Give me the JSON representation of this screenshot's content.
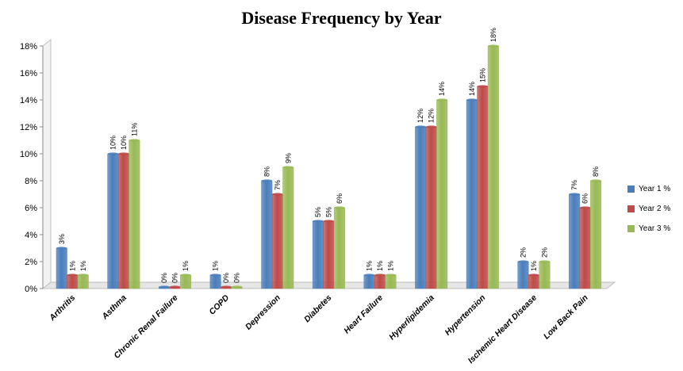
{
  "chart_data": {
    "type": "bar",
    "title": "Disease Frequency by Year",
    "xlabel": "",
    "ylabel": "",
    "ylim": [
      0,
      18
    ],
    "yticks": [
      "0%",
      "2%",
      "4%",
      "6%",
      "8%",
      "10%",
      "12%",
      "14%",
      "16%",
      "18%"
    ],
    "categories": [
      "Arthritis",
      "Asthma",
      "Chronic Renal Failure",
      "COPD",
      "Depression",
      "Diabetes",
      "Heart Failure",
      "Hyperlipidemia",
      "Hypertension",
      "Ischemic Heart Disease",
      "Low Back Pain"
    ],
    "series": [
      {
        "name": "Year 1 %",
        "color": "#4a7ebb",
        "values": [
          3,
          10,
          0,
          1,
          8,
          5,
          1,
          12,
          14,
          2,
          7
        ],
        "labels": [
          "3%",
          "10%",
          "0%",
          "1%",
          "8%",
          "5%",
          "1%",
          "12%",
          "14%",
          "2%",
          "7%"
        ]
      },
      {
        "name": "Year 2 %",
        "color": "#be4b48",
        "values": [
          1,
          10,
          0,
          0,
          7,
          5,
          1,
          12,
          15,
          1,
          6
        ],
        "labels": [
          "1%",
          "10%",
          "0%",
          "0%",
          "7%",
          "5%",
          "1%",
          "12%",
          "15%",
          "1%",
          "6%"
        ]
      },
      {
        "name": "Year 3 %",
        "color": "#98b954",
        "values": [
          1,
          11,
          1,
          0,
          9,
          6,
          1,
          14,
          18,
          2,
          8
        ],
        "labels": [
          "1%",
          "11%",
          "1%",
          "0%",
          "9%",
          "6%",
          "1%",
          "14%",
          "18%",
          "2%",
          "8%"
        ]
      }
    ],
    "legend_position": "right",
    "grid": false
  }
}
